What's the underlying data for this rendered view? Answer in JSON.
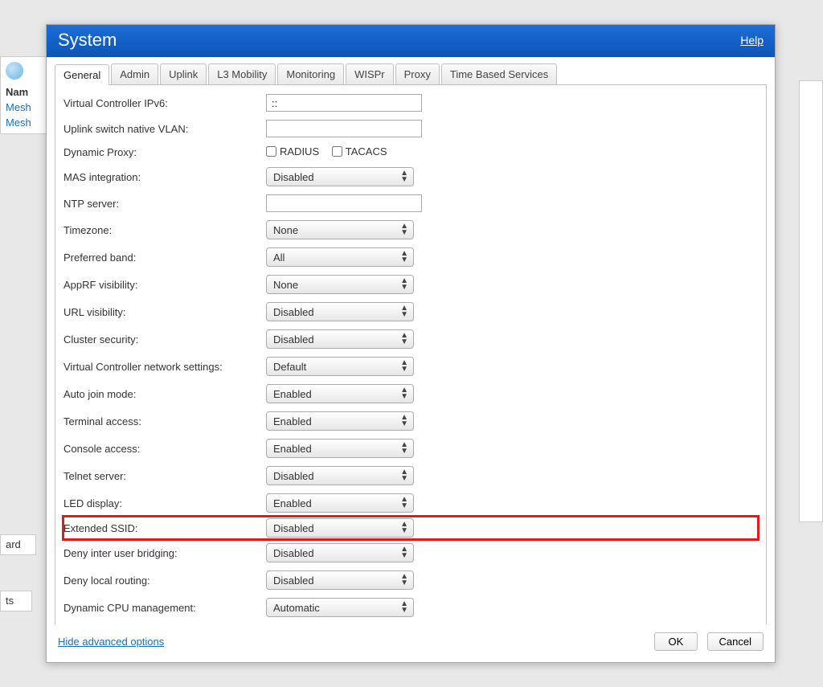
{
  "background": {
    "sidebar_header": "Nam",
    "sidebar_links": [
      "Mesh",
      "Mesh"
    ],
    "strip1": "ard",
    "strip2": "ts"
  },
  "dialog": {
    "title": "System",
    "help": "Help",
    "tabs": [
      "General",
      "Admin",
      "Uplink",
      "L3 Mobility",
      "Monitoring",
      "WISPr",
      "Proxy",
      "Time Based Services"
    ],
    "active_tab_index": 0,
    "fields": {
      "vc_ipv6_label": "Virtual Controller IPv6:",
      "vc_ipv6_value": "::",
      "uplink_vlan_label": "Uplink switch native VLAN:",
      "uplink_vlan_value": "",
      "dyn_proxy_label": "Dynamic Proxy:",
      "dyn_proxy_radius": "RADIUS",
      "dyn_proxy_tacacs": "TACACS",
      "mas_label": "MAS integration:",
      "mas_value": "Disabled",
      "ntp_label": "NTP server:",
      "ntp_value": "",
      "tz_label": "Timezone:",
      "tz_value": "None",
      "band_label": "Preferred band:",
      "band_value": "All",
      "apprf_label": "AppRF visibility:",
      "apprf_value": "None",
      "url_label": "URL visibility:",
      "url_value": "Disabled",
      "cluster_label": "Cluster security:",
      "cluster_value": "Disabled",
      "vcnet_label": "Virtual Controller network settings:",
      "vcnet_value": "Default",
      "autojoin_label": "Auto join mode:",
      "autojoin_value": "Enabled",
      "terminal_label": "Terminal access:",
      "terminal_value": "Enabled",
      "console_label": "Console access:",
      "console_value": "Enabled",
      "telnet_label": "Telnet server:",
      "telnet_value": "Disabled",
      "led_label": "LED display:",
      "led_value": "Enabled",
      "ext_ssid_label": "Extended SSID:",
      "ext_ssid_value": "Disabled",
      "deny_bridge_label": "Deny inter user bridging:",
      "deny_bridge_value": "Disabled",
      "deny_local_label": "Deny local routing:",
      "deny_local_value": "Disabled",
      "dyn_cpu_label": "Dynamic CPU management:",
      "dyn_cpu_value": "Automatic"
    },
    "hide_advanced": "Hide advanced options",
    "ok": "OK",
    "cancel": "Cancel"
  },
  "highlight": {
    "color": "#e11b1b",
    "field_key": "ext_ssid"
  },
  "style": {
    "title_bg_from": "#1d6ed6",
    "title_bg_to": "#0b55b8",
    "link_color": "#1a6fb5"
  }
}
